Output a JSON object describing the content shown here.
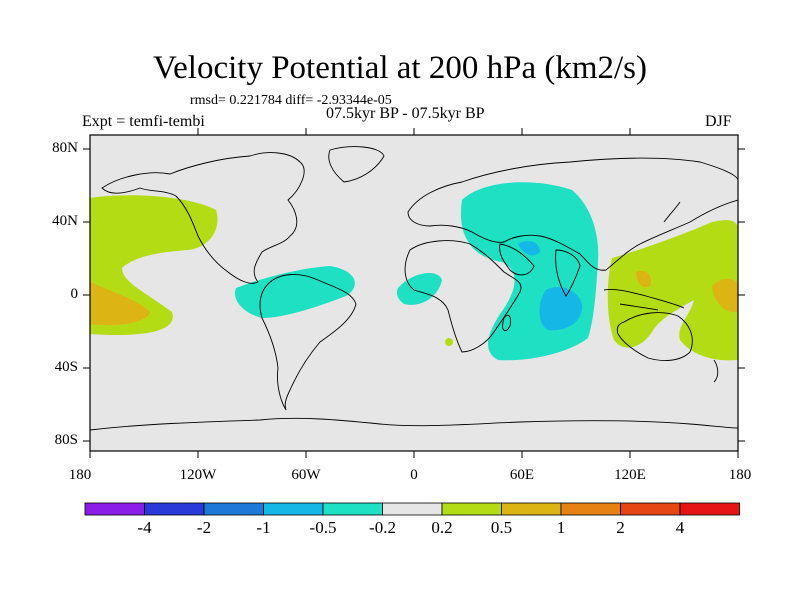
{
  "header": {
    "title": "Velocity Potential at 200 hPa (km2/s)",
    "stats": "rmsd= 0.221784 diff= -2.93344e-05",
    "experiment": "Expt = temfi-tembi",
    "period": "07.5kyr BP - 07.5kyr BP",
    "season": "DJF"
  },
  "axes": {
    "lat_labels": [
      "80N",
      "40N",
      "0",
      "40S",
      "80S"
    ],
    "lon_labels": [
      "180",
      "120W",
      "60W",
      "0",
      "60E",
      "120E",
      "180"
    ]
  },
  "colorbar": {
    "labels": [
      "-4",
      "-2",
      "-1",
      "-0.5",
      "-0.2",
      "0.2",
      "0.5",
      "1",
      "2",
      "4"
    ],
    "colors": [
      "#8a1ee8",
      "#2a3ad8",
      "#1e78d8",
      "#14b8e6",
      "#1ee0c2",
      "#e6e6e6",
      "#b4dc14",
      "#dcb414",
      "#e68214",
      "#e64614",
      "#e61414"
    ]
  },
  "colors": {
    "land_outline": "#000000",
    "background": "#e6e6e6"
  }
}
